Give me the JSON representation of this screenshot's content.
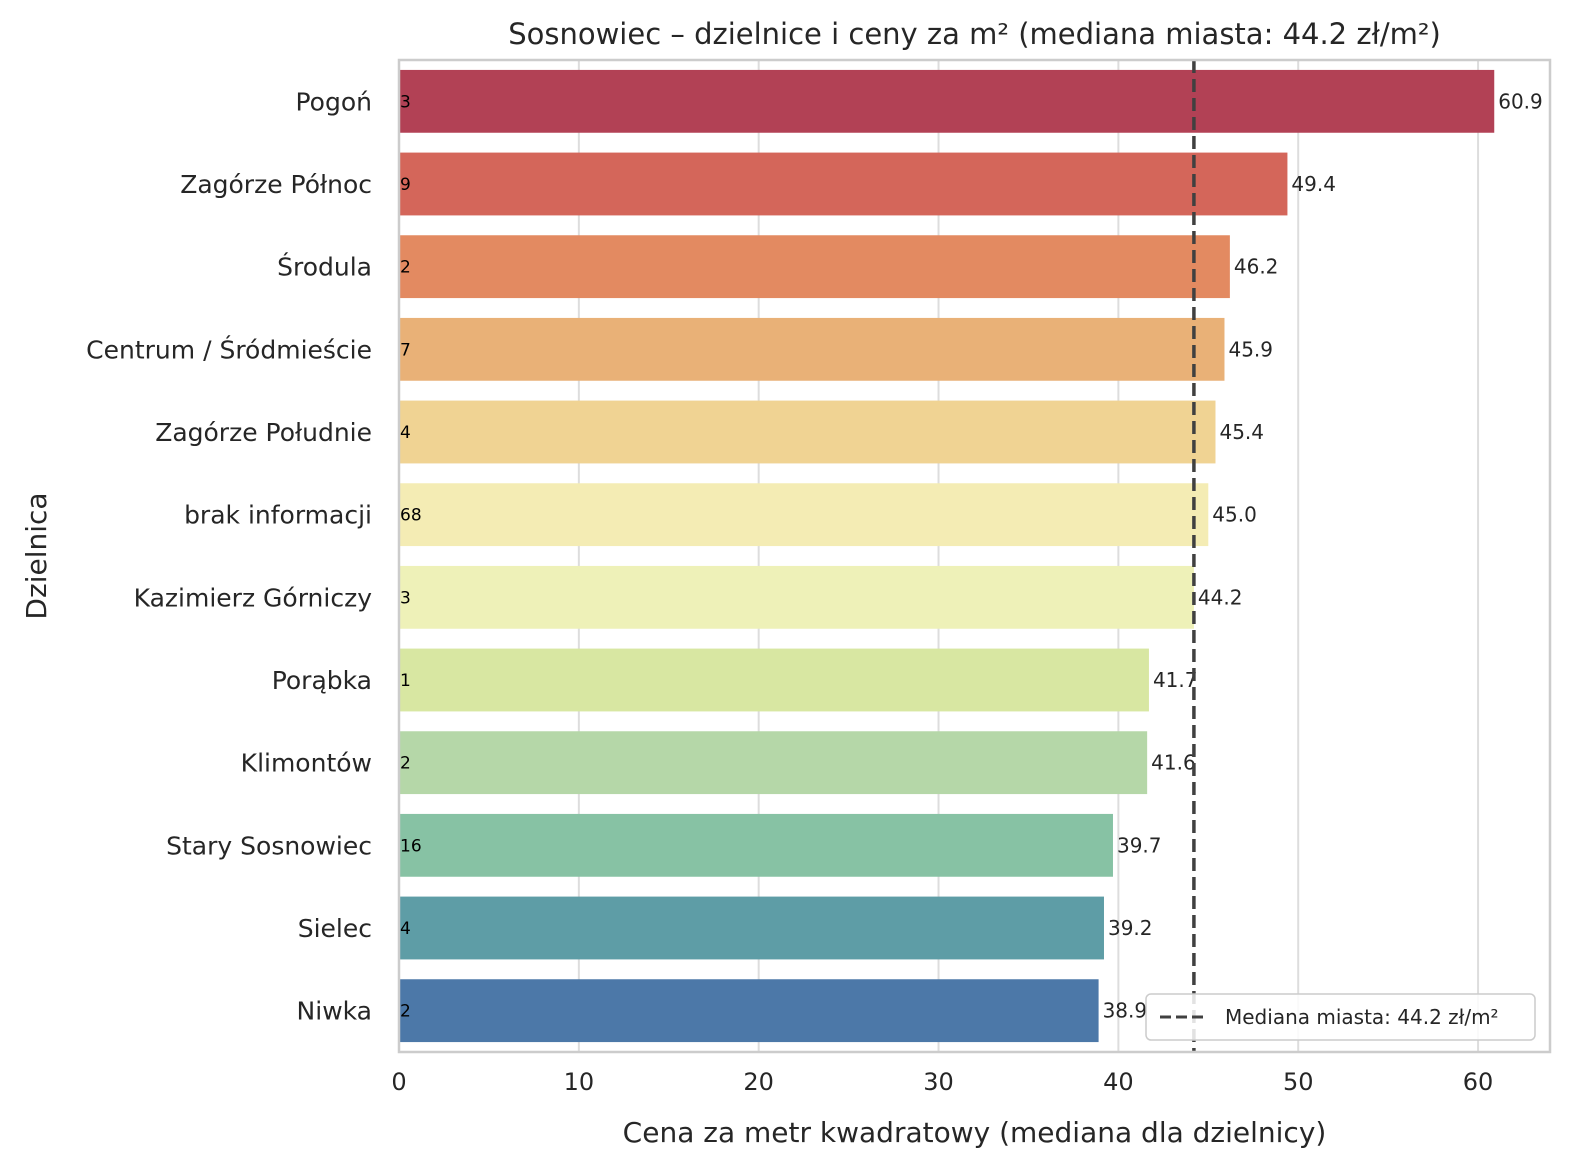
{
  "chart_data": {
    "type": "bar",
    "orientation": "horizontal",
    "title": "Sosnowiec – dzielnice i ceny za m² (mediana miasta: 44.2 zł/m²)",
    "xlabel": "Cena za metr kwadratowy (mediana dla dzielnicy)",
    "ylabel": "Dzielnica",
    "xlim": [
      0,
      64
    ],
    "xticks": [
      0,
      10,
      20,
      30,
      40,
      50,
      60
    ],
    "grid": true,
    "legend_position": "bottom-right",
    "categories": [
      "Pogoń",
      "Zagórze Północ",
      "Środula",
      "Centrum / Śródmieście",
      "Zagórze Południe",
      "brak informacji",
      "Kazimierz Górniczy",
      "Porąbka",
      "Klimontów",
      "Stary Sosnowiec",
      "Sielec",
      "Niwka"
    ],
    "values": [
      60.9,
      49.4,
      46.2,
      45.9,
      45.4,
      45.0,
      44.2,
      41.7,
      41.6,
      39.7,
      39.2,
      38.9
    ],
    "value_labels": [
      "60.9",
      "49.4",
      "46.2",
      "45.9",
      "45.4",
      "45.0",
      "44.2",
      "41.7",
      "41.6",
      "39.7",
      "39.2",
      "38.9"
    ],
    "counts": [
      "3",
      "9",
      "2",
      "7",
      "4",
      "68",
      "3",
      "1",
      "2",
      "16",
      "4",
      "2"
    ],
    "colors": [
      "#b24155",
      "#d4665a",
      "#e38a61",
      "#e9b177",
      "#f0d393",
      "#f4ecb4",
      "#eef1b8",
      "#d8e7a2",
      "#b5d7a8",
      "#87c2a4",
      "#5e9da6",
      "#4c78a8"
    ],
    "reference_line": {
      "value": 44.2,
      "label": "Mediana miasta: 44.2 zł/m²",
      "color": "#404040"
    }
  }
}
